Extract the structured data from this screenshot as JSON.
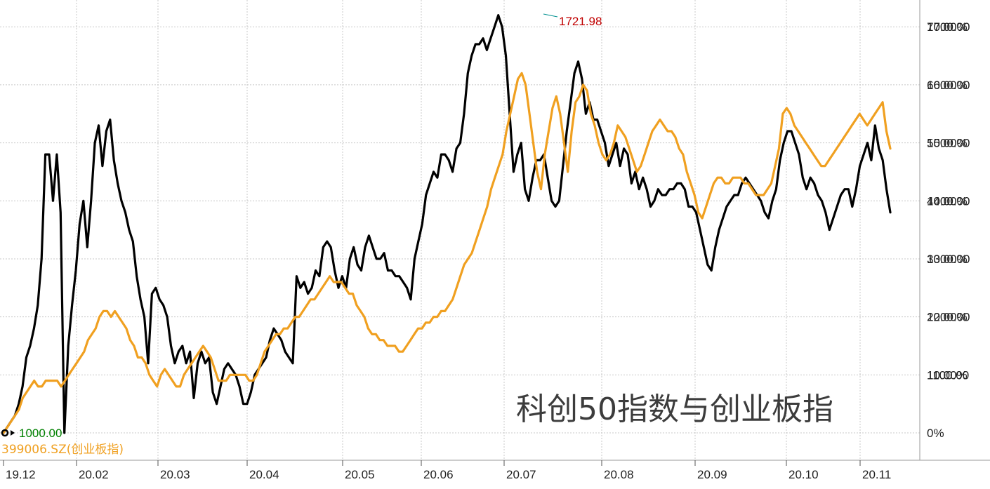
{
  "chart_data": {
    "type": "line",
    "title": "科创50指数与创业板指",
    "legend_label": "399006.SZ(创业板指)",
    "x_ticks": [
      "19.12",
      "20.02",
      "20.03",
      "20.04",
      "20.05",
      "20.06",
      "20.07",
      "20.08",
      "20.09",
      "20.10",
      "20.11"
    ],
    "y_ticks_percent": [
      "70.00%",
      "60.00%",
      "50.00%",
      "40.00%",
      "30.00%",
      "20.00%",
      "10.00%",
      "0%"
    ],
    "y_ticks_value": [
      "1700.00",
      "1600.00",
      "1500.00",
      "1400.00",
      "1300.00",
      "1200.00",
      "1100.00"
    ],
    "ylim_percent": [
      0,
      72.2
    ],
    "grid": true,
    "base_label": "1000.00",
    "peak_label": "1721.98",
    "colors": {
      "kc50": "#000000",
      "chinext": "#f0a020",
      "peak": "#c00000",
      "base": "#008000",
      "grid": "#c8c8c8"
    },
    "series": [
      {
        "key": "kc50",
        "values": [
          0,
          1,
          2,
          3,
          5,
          8,
          13,
          15,
          18,
          22,
          30,
          48,
          48,
          40,
          48,
          38,
          0,
          15,
          22,
          28,
          36,
          40,
          32,
          40,
          50,
          53,
          46,
          52,
          54,
          47,
          43,
          40,
          38,
          35,
          33,
          27,
          23,
          20,
          12,
          24,
          25,
          23,
          22,
          20,
          15,
          12,
          14,
          15,
          12,
          14,
          6,
          12,
          14,
          12,
          13,
          7,
          5,
          8,
          11,
          12,
          11,
          10,
          8,
          5,
          5,
          7,
          10,
          11,
          12,
          13,
          16,
          18,
          17,
          16,
          14,
          13,
          12,
          27,
          25,
          26,
          24,
          25,
          28,
          27,
          32,
          33,
          32,
          28,
          25,
          27,
          25,
          30,
          32,
          29,
          28,
          32,
          34,
          32,
          30,
          30,
          31,
          28,
          28,
          27,
          27,
          26,
          25,
          23,
          30,
          33,
          36,
          41,
          43,
          45,
          44,
          48,
          48,
          47,
          45,
          49,
          50,
          55,
          62,
          65,
          67,
          67,
          68,
          66,
          68,
          70,
          72,
          70,
          65,
          55,
          45,
          48,
          50,
          42,
          40,
          44,
          47,
          47,
          48,
          44,
          40,
          39,
          40,
          46,
          52,
          57,
          62,
          64,
          61,
          55,
          57,
          54,
          54,
          52,
          50,
          46,
          48,
          50,
          46,
          49,
          48,
          43,
          45,
          42,
          44,
          42,
          39,
          40,
          42,
          41,
          41,
          42,
          42,
          43,
          43,
          42,
          39,
          39,
          38,
          35,
          32,
          29,
          28,
          32,
          35,
          37,
          39,
          40,
          41,
          41,
          43,
          44,
          43,
          42,
          41,
          40,
          38,
          37,
          40,
          42,
          47,
          50,
          52,
          52,
          50,
          48,
          44,
          42,
          44,
          43,
          41,
          40,
          38,
          35,
          37,
          39,
          41,
          42,
          42,
          39,
          42,
          46,
          48,
          50,
          47,
          53,
          49,
          47,
          42,
          38
        ]
      },
      {
        "key": "chinext",
        "values": [
          0,
          1,
          2,
          3,
          4,
          6,
          7,
          8,
          9,
          8,
          8,
          9,
          9,
          9,
          9,
          8,
          9,
          10,
          11,
          12,
          13,
          14,
          16,
          17,
          18,
          20,
          21,
          21,
          20,
          21,
          20,
          19,
          18,
          16,
          15,
          13,
          13,
          12,
          10,
          9,
          8,
          10,
          11,
          10,
          9,
          8,
          8,
          10,
          11,
          12,
          13,
          14,
          15,
          14,
          13,
          11,
          9,
          9,
          9,
          10,
          10,
          10,
          10,
          10,
          9,
          9,
          10,
          12,
          14,
          15,
          16,
          17,
          17,
          18,
          18,
          19,
          20,
          20,
          21,
          22,
          23,
          23,
          24,
          25,
          26,
          27,
          26,
          26,
          26,
          25,
          24,
          24,
          22,
          21,
          20,
          18,
          17,
          17,
          16,
          16,
          15,
          15,
          15,
          14,
          14,
          15,
          16,
          17,
          18,
          18,
          19,
          19,
          20,
          20,
          21,
          21,
          22,
          23,
          25,
          27,
          29,
          30,
          31,
          33,
          35,
          37,
          39,
          42,
          44,
          46,
          48,
          52,
          55,
          58,
          61,
          62,
          60,
          55,
          50,
          45,
          42,
          48,
          52,
          56,
          58,
          55,
          50,
          45,
          52,
          57,
          58,
          60,
          59,
          55,
          53,
          50,
          48,
          47,
          48,
          50,
          53,
          52,
          51,
          49,
          47,
          45,
          46,
          48,
          50,
          52,
          53,
          54,
          53,
          52,
          52,
          51,
          49,
          48,
          45,
          43,
          41,
          38,
          37,
          39,
          41,
          43,
          44,
          44,
          43,
          43,
          44,
          44,
          44,
          43,
          43,
          42,
          41,
          41,
          41,
          42,
          43,
          46,
          49,
          55,
          56,
          55,
          53,
          52,
          51,
          50,
          49,
          48,
          47,
          46,
          46,
          47,
          48,
          49,
          50,
          51,
          52,
          53,
          54,
          55,
          54,
          53,
          54,
          55,
          56,
          57,
          52,
          49
        ]
      }
    ]
  }
}
